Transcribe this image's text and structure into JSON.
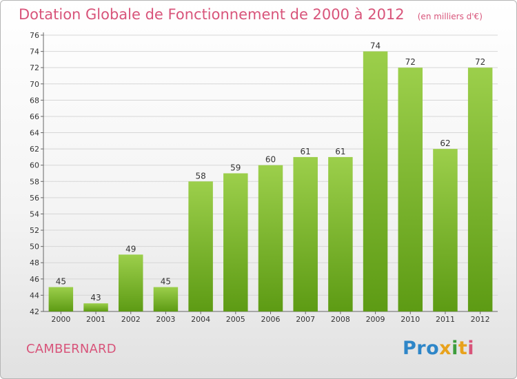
{
  "title": "Dotation Globale de Fonctionnement de 2000 à 2012",
  "unit": "(en milliers d'€)",
  "commune": "CAMBERNARD",
  "logo": {
    "p1": "Pro",
    "p2": "x",
    "p3": "i",
    "p4": "t",
    "p5": "i"
  },
  "colors": {
    "bar_top": "#9ccf4b",
    "bar_bottom": "#5d9b14",
    "title": "#d8547a",
    "grid": "#d6d6d6"
  },
  "chart_data": {
    "type": "bar",
    "title": "Dotation Globale de Fonctionnement de 2000 à 2012",
    "subtitle": "(en milliers d'€)",
    "categories": [
      "2000",
      "2001",
      "2002",
      "2003",
      "2004",
      "2005",
      "2006",
      "2007",
      "2008",
      "2009",
      "2010",
      "2011",
      "2012"
    ],
    "values": [
      45,
      43,
      49,
      45,
      58,
      59,
      60,
      61,
      61,
      74,
      72,
      62,
      72
    ],
    "ylim": [
      42,
      76
    ],
    "ytick_step": 2,
    "grid": true,
    "legend": "none"
  }
}
